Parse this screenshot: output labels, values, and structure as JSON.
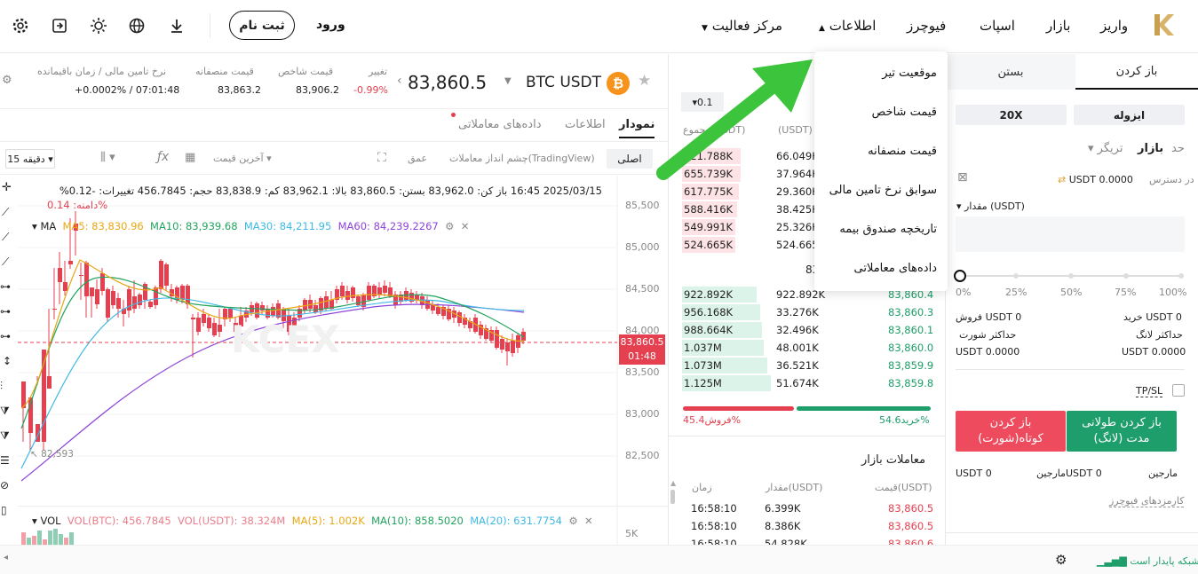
{
  "nav": {
    "deposit": "واریز",
    "market": "بازار",
    "spot": "اسپات",
    "futures": "فیوچرز",
    "info": "اطلاعات",
    "activity": "مرکز فعالیت",
    "login": "ورود",
    "register": "ثبت نام"
  },
  "info_menu": [
    "موقعیت تیر",
    "قیمت شاخص",
    "قیمت منصفانه",
    "سوابق نرخ تامین مالی",
    "تاریخچه صندوق بیمه",
    "داده‌های معاملاتی"
  ],
  "ticker": {
    "pair": "BTC USDT",
    "price": "83,860.5",
    "change_label": "تغییر",
    "change": "-0.99%",
    "index_label": "قیمت شاخص",
    "index": "83,906.2",
    "fair_label": "قیمت منصفانه",
    "fair": "83,863.2",
    "funding_label": "نرخ تامین مالی / زمان باقیمانده",
    "funding": "+0.0002% / 07:01:48"
  },
  "chart_tabs": {
    "chart": "نمودار",
    "info": "اطلاعات",
    "data": "داده‌های معاملاتی"
  },
  "chart_toolbar": {
    "original": "اصلی",
    "tv": "چشم انداز معاملات(TradingView)",
    "depth": "عمق",
    "last_price": "آخرین قیمت",
    "interval": "15 دقیقه"
  },
  "candle_info": {
    "line1": "2025/03/15 16:45  باز کن: 83,962.0  بستن: 83,860.5  بالا: 83,962.1  کم: 83,838.9  حجم: 456.7845  تغییرات: -0.12%",
    "line2": "دامنه: 0.14%",
    "ma": "MA",
    "ma5": "MA5: 83,830.96",
    "ma10": "MA10: 83,939.68",
    "ma30": "MA30: 84,211.95",
    "ma60": "MA60: 84,239.2267",
    "low_label": "82,593",
    "price_tag": "83,860.5",
    "time_tag": "01:48"
  },
  "y_axis": [
    "85,500",
    "85,000",
    "84,500",
    "84,000",
    "83,500",
    "83,000",
    "82,500",
    "5K"
  ],
  "vol": {
    "label": "VOL",
    "btc": "VOL(BTC): 456.7845",
    "usdt": "VOL(USDT): 38.324M",
    "ma5": "MA(5): 1.002K",
    "ma10": "MA(10): 858.5020",
    "ma20": "MA(20): 631.7754"
  },
  "orderbook": {
    "step": "0.1",
    "col_price": "قیمت",
    "col_amount": "(USDT)",
    "col_total": "مجموع(USDT)",
    "asks": [
      [
        "721.788K",
        "66.049K"
      ],
      [
        "655.739K",
        "37.964K"
      ],
      [
        "617.775K",
        "29.360K"
      ],
      [
        "588.416K",
        "38.425K"
      ],
      [
        "549.991K",
        "25.326K"
      ],
      [
        "524.665K",
        "524.665K"
      ]
    ],
    "mid": "83",
    "bids": [
      [
        "922.892K",
        "922.892K",
        "83,860.4"
      ],
      [
        "956.168K",
        "33.276K",
        "83,860.3"
      ],
      [
        "988.664K",
        "32.496K",
        "83,860.1"
      ],
      [
        "1.037M",
        "48.001K",
        "83,860.0"
      ],
      [
        "1.073M",
        "36.521K",
        "83,859.9"
      ],
      [
        "1.125M",
        "51.674K",
        "83,859.8"
      ]
    ],
    "buy_pct": "خرید54.6%",
    "sell_pct": "فروش45.4%"
  },
  "trades": {
    "title": "معاملات بازار",
    "col_price": "قیمت(USDT)",
    "col_amount": "مقدار(USDT)",
    "col_time": "زمان",
    "rows": [
      [
        "83,860.5",
        "6.399K",
        "16:58:10"
      ],
      [
        "83,860.5",
        "8.386K",
        "16:58:10"
      ],
      [
        "83,860.6",
        "54.828K",
        "16:58:10"
      ]
    ]
  },
  "order": {
    "tab_open": "باز کردن",
    "tab_close": "بستن",
    "isolated": "ایزوله",
    "leverage": "20X",
    "limit": "حد",
    "market": "بازار",
    "trigger": "تریگر",
    "avail_label": "در دسترس",
    "avail": "USDT 0.0000",
    "qty_label": "مقدار (USDT)",
    "marks": [
      "0%",
      "25%",
      "50%",
      "75%",
      "100%"
    ],
    "buy": "خرید USDT 0",
    "sell": "فروش USDT 0",
    "max_long": "حداکثر لانگ",
    "max_short": "حداکثر شورت",
    "max_long_val": "USDT 0.0000",
    "max_short_val": "USDT 0.0000",
    "tpsl": "TP/SL",
    "long_btn": "باز کردن طولانی مدت (لانگ)",
    "short_btn": "باز کردن کوتاه‌(شورت)",
    "margin": "مارجین",
    "margin_long": "USDT 0",
    "margin_short": "USDT 0",
    "fees": "کارمزدهای فیوچرز"
  },
  "footer": {
    "network": "شبکه پایدار است"
  }
}
